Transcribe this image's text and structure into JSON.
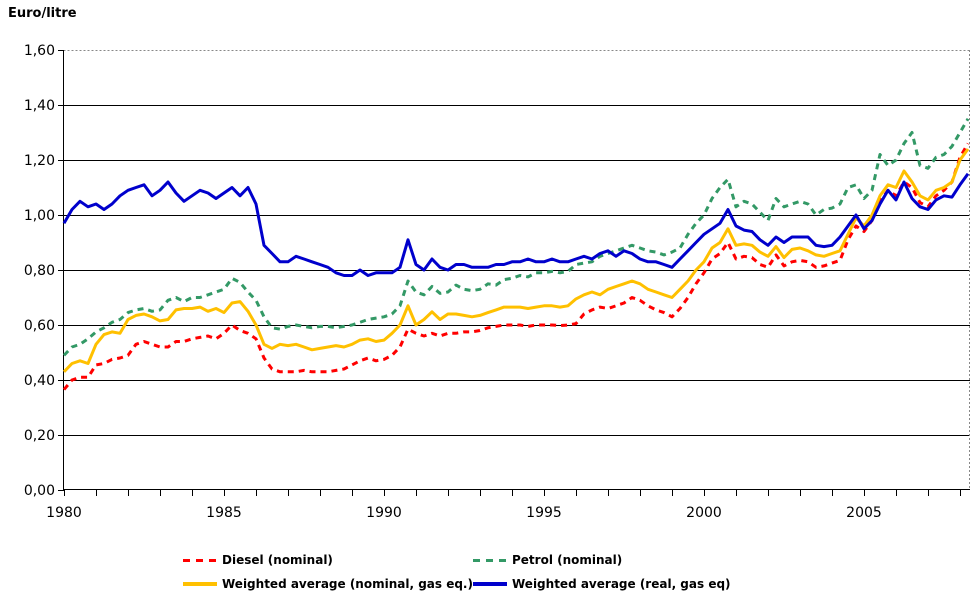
{
  "unit_label": "Euro/litre",
  "chart_data": {
    "type": "line",
    "ylabel": "Euro/litre",
    "xlabel": "",
    "grid": "horizontal-solid-black",
    "legend_position": "bottom",
    "x_start": 1980,
    "x_step": 0.25,
    "x_axis": {
      "min": 1980,
      "max": 2008.3,
      "tick_every_years": 1,
      "label_years": [
        1980,
        1985,
        1990,
        1995,
        2000,
        2005
      ],
      "labels": [
        "1980",
        "1985",
        "1990",
        "1995",
        "2000",
        "2005"
      ]
    },
    "y_axis": {
      "min": 0,
      "max": 1.6,
      "tick_step": 0.2,
      "labels": [
        "0,00",
        "0,20",
        "0,40",
        "0,60",
        "0,80",
        "1,00",
        "1,20",
        "1,40",
        "1,60"
      ]
    },
    "series": [
      {
        "name": "Diesel (nominal)",
        "color": "#FF0000",
        "style": "dashed",
        "values": [
          0.365,
          0.4,
          0.41,
          0.41,
          0.455,
          0.46,
          0.475,
          0.48,
          0.49,
          0.53,
          0.54,
          0.53,
          0.52,
          0.52,
          0.54,
          0.54,
          0.55,
          0.555,
          0.56,
          0.55,
          0.57,
          0.6,
          0.58,
          0.57,
          0.55,
          0.48,
          0.44,
          0.43,
          0.43,
          0.43,
          0.435,
          0.43,
          0.43,
          0.43,
          0.435,
          0.44,
          0.455,
          0.47,
          0.48,
          0.47,
          0.475,
          0.49,
          0.52,
          0.585,
          0.57,
          0.56,
          0.57,
          0.56,
          0.57,
          0.57,
          0.575,
          0.575,
          0.58,
          0.59,
          0.595,
          0.6,
          0.6,
          0.6,
          0.595,
          0.6,
          0.6,
          0.6,
          0.598,
          0.6,
          0.605,
          0.64,
          0.655,
          0.665,
          0.66,
          0.67,
          0.68,
          0.7,
          0.69,
          0.67,
          0.655,
          0.645,
          0.63,
          0.66,
          0.7,
          0.75,
          0.79,
          0.84,
          0.86,
          0.9,
          0.84,
          0.85,
          0.845,
          0.82,
          0.81,
          0.855,
          0.815,
          0.83,
          0.835,
          0.83,
          0.81,
          0.815,
          0.825,
          0.835,
          0.91,
          0.96,
          0.94,
          0.98,
          1.05,
          1.09,
          1.07,
          1.12,
          1.1,
          1.045,
          1.03,
          1.07,
          1.09,
          1.12,
          1.21,
          1.26
        ]
      },
      {
        "name": "Petrol (nominal)",
        "color": "#339966",
        "style": "dashed",
        "values": [
          0.49,
          0.52,
          0.53,
          0.55,
          0.575,
          0.59,
          0.61,
          0.62,
          0.645,
          0.655,
          0.66,
          0.65,
          0.655,
          0.69,
          0.7,
          0.685,
          0.7,
          0.7,
          0.71,
          0.72,
          0.73,
          0.77,
          0.755,
          0.72,
          0.69,
          0.63,
          0.59,
          0.585,
          0.595,
          0.6,
          0.595,
          0.59,
          0.595,
          0.595,
          0.59,
          0.595,
          0.6,
          0.61,
          0.62,
          0.625,
          0.63,
          0.64,
          0.67,
          0.76,
          0.72,
          0.71,
          0.74,
          0.715,
          0.72,
          0.745,
          0.73,
          0.725,
          0.73,
          0.75,
          0.745,
          0.765,
          0.77,
          0.78,
          0.775,
          0.79,
          0.79,
          0.795,
          0.79,
          0.795,
          0.82,
          0.825,
          0.83,
          0.85,
          0.86,
          0.87,
          0.88,
          0.89,
          0.88,
          0.87,
          0.865,
          0.855,
          0.865,
          0.88,
          0.93,
          0.97,
          1.0,
          1.06,
          1.1,
          1.13,
          1.03,
          1.05,
          1.04,
          1.01,
          0.98,
          1.06,
          1.03,
          1.04,
          1.05,
          1.04,
          1.0,
          1.02,
          1.025,
          1.04,
          1.1,
          1.11,
          1.06,
          1.09,
          1.22,
          1.18,
          1.2,
          1.26,
          1.3,
          1.18,
          1.17,
          1.21,
          1.22,
          1.25,
          1.3,
          1.35
        ]
      },
      {
        "name": "Weighted average (nominal, gas eq.)",
        "color": "#FFC000",
        "style": "solid",
        "values": [
          0.43,
          0.46,
          0.47,
          0.46,
          0.53,
          0.565,
          0.575,
          0.57,
          0.62,
          0.635,
          0.64,
          0.63,
          0.615,
          0.62,
          0.655,
          0.66,
          0.66,
          0.665,
          0.65,
          0.66,
          0.645,
          0.68,
          0.685,
          0.65,
          0.6,
          0.53,
          0.515,
          0.53,
          0.525,
          0.53,
          0.52,
          0.51,
          0.515,
          0.52,
          0.525,
          0.52,
          0.53,
          0.545,
          0.55,
          0.54,
          0.545,
          0.57,
          0.6,
          0.67,
          0.6,
          0.62,
          0.648,
          0.62,
          0.64,
          0.64,
          0.635,
          0.63,
          0.635,
          0.645,
          0.655,
          0.665,
          0.665,
          0.665,
          0.66,
          0.665,
          0.67,
          0.67,
          0.665,
          0.67,
          0.695,
          0.71,
          0.72,
          0.71,
          0.73,
          0.74,
          0.75,
          0.76,
          0.75,
          0.73,
          0.72,
          0.71,
          0.7,
          0.73,
          0.76,
          0.8,
          0.83,
          0.88,
          0.9,
          0.95,
          0.89,
          0.895,
          0.89,
          0.865,
          0.85,
          0.885,
          0.845,
          0.875,
          0.88,
          0.87,
          0.855,
          0.85,
          0.86,
          0.87,
          0.93,
          0.99,
          0.96,
          1.0,
          1.07,
          1.11,
          1.1,
          1.16,
          1.12,
          1.07,
          1.055,
          1.09,
          1.1,
          1.12,
          1.2,
          1.24
        ]
      },
      {
        "name": "Weighted average (real, gas eq)",
        "color": "#0000CC",
        "style": "solid",
        "values": [
          0.97,
          1.02,
          1.05,
          1.03,
          1.04,
          1.02,
          1.04,
          1.07,
          1.09,
          1.1,
          1.11,
          1.07,
          1.09,
          1.12,
          1.08,
          1.05,
          1.07,
          1.09,
          1.08,
          1.06,
          1.08,
          1.1,
          1.07,
          1.1,
          1.04,
          0.89,
          0.86,
          0.83,
          0.83,
          0.85,
          0.84,
          0.83,
          0.82,
          0.81,
          0.79,
          0.78,
          0.78,
          0.8,
          0.78,
          0.79,
          0.79,
          0.79,
          0.81,
          0.91,
          0.82,
          0.8,
          0.84,
          0.81,
          0.8,
          0.82,
          0.82,
          0.81,
          0.81,
          0.81,
          0.82,
          0.82,
          0.83,
          0.83,
          0.84,
          0.83,
          0.83,
          0.84,
          0.83,
          0.83,
          0.84,
          0.85,
          0.84,
          0.86,
          0.87,
          0.85,
          0.87,
          0.86,
          0.84,
          0.83,
          0.83,
          0.82,
          0.81,
          0.84,
          0.87,
          0.9,
          0.93,
          0.95,
          0.97,
          1.02,
          0.96,
          0.945,
          0.94,
          0.91,
          0.89,
          0.92,
          0.9,
          0.92,
          0.92,
          0.92,
          0.89,
          0.885,
          0.89,
          0.92,
          0.96,
          1.0,
          0.95,
          0.98,
          1.04,
          1.09,
          1.055,
          1.12,
          1.06,
          1.03,
          1.02,
          1.055,
          1.07,
          1.065,
          1.11,
          1.15
        ]
      }
    ]
  }
}
